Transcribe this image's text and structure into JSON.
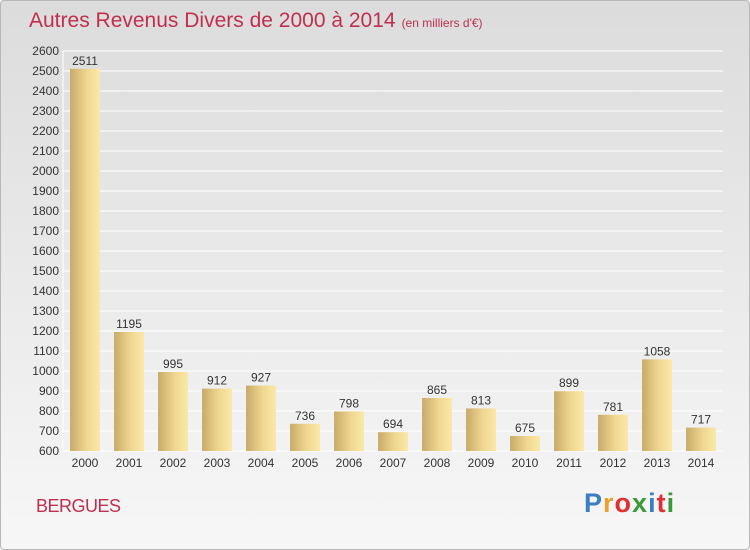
{
  "header": {
    "title": "Autres Revenus Divers de 2000 à 2014",
    "subtitle": "(en milliers d'€)"
  },
  "footer": {
    "city": "BERGUES",
    "logo": "Proxiti",
    "logo_colors": [
      "#3a7fc4",
      "#e8a230",
      "#e03030",
      "#3a9a3a",
      "#3a7fc4",
      "#e03030",
      "#3a9a3a"
    ]
  },
  "colors": {
    "title": "#c0304e",
    "bar_light": "#fbe7a7",
    "bar_dark": "#c9ad6b",
    "grid": "#ffffff"
  },
  "chart_data": {
    "type": "bar",
    "title": "Autres Revenus Divers de 2000 à 2014",
    "xlabel": "",
    "ylabel": "",
    "categories": [
      "2000",
      "2001",
      "2002",
      "2003",
      "2004",
      "2005",
      "2006",
      "2007",
      "2008",
      "2009",
      "2010",
      "2011",
      "2012",
      "2013",
      "2014"
    ],
    "values": [
      2511,
      1195,
      995,
      912,
      927,
      736,
      798,
      694,
      865,
      813,
      675,
      899,
      781,
      1058,
      717
    ],
    "ylim": [
      600,
      2600
    ],
    "yticks": [
      600,
      700,
      800,
      900,
      1000,
      1100,
      1200,
      1300,
      1400,
      1500,
      1600,
      1700,
      1800,
      1900,
      2000,
      2100,
      2200,
      2300,
      2400,
      2500,
      2600
    ],
    "grid": true,
    "legend": "none"
  }
}
